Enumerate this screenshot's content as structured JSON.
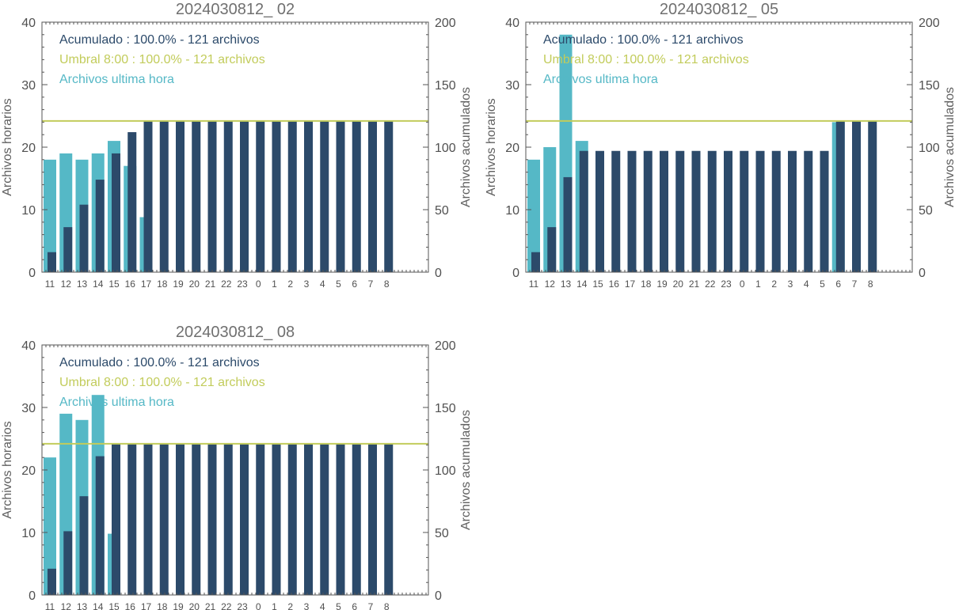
{
  "colors": {
    "hourly": "#55B8C6",
    "cumulative": "#2C4A6A",
    "threshold": "#C2CC5B",
    "axis": "#555555"
  },
  "chart_data": [
    {
      "type": "bar",
      "title": "2024030812_ 02",
      "ylabel": "Archivos horarios",
      "y2label": "Archivos acumulados",
      "ylim": [
        0,
        40
      ],
      "y2lim": [
        0,
        200
      ],
      "yticks": [
        "0",
        "10",
        "20",
        "30",
        "40"
      ],
      "y2ticks": [
        "0",
        "50",
        "100",
        "150",
        "200"
      ],
      "categories": [
        "11",
        "12",
        "13",
        "14",
        "15",
        "16",
        "17",
        "18",
        "19",
        "20",
        "21",
        "22",
        "23",
        "0",
        "1",
        "2",
        "3",
        "4",
        "5",
        "6",
        "7",
        "8"
      ],
      "legend": [
        "Acumulado : 100.0% - 121 archivos",
        "Umbral 8:00 : 100.0% - 121 archivos",
        "Archivos ultima hora"
      ],
      "threshold": 121,
      "series": [
        {
          "name": "Archivos ultima hora",
          "values": [
            18,
            19,
            18,
            19,
            21,
            17,
            8.8,
            0,
            0,
            0,
            0,
            0,
            0,
            0,
            0,
            0,
            0,
            0,
            0,
            0,
            0,
            0
          ]
        },
        {
          "name": "Acumulado",
          "values": [
            16,
            36,
            54,
            74,
            95,
            112,
            121,
            121,
            121,
            121,
            121,
            121,
            121,
            121,
            121,
            121,
            121,
            121,
            121,
            121,
            121,
            121
          ]
        }
      ]
    },
    {
      "type": "bar",
      "title": "2024030812_ 05",
      "ylabel": "Archivos horarios",
      "y2label": "Archivos acumulados",
      "ylim": [
        0,
        40
      ],
      "y2lim": [
        0,
        200
      ],
      "yticks": [
        "0",
        "10",
        "20",
        "30",
        "40"
      ],
      "y2ticks": [
        "0",
        "50",
        "100",
        "150",
        "200"
      ],
      "categories": [
        "11",
        "12",
        "13",
        "14",
        "15",
        "16",
        "17",
        "18",
        "19",
        "20",
        "21",
        "22",
        "23",
        "0",
        "1",
        "2",
        "3",
        "4",
        "5",
        "6",
        "7",
        "8"
      ],
      "legend": [
        "Acumulado : 100.0% - 121 archivos",
        "Umbral 8:00 : 100.0% - 121 archivos",
        "Archivos ultima hora"
      ],
      "threshold": 121,
      "series": [
        {
          "name": "Archivos ultima hora",
          "values": [
            18,
            20,
            38,
            21,
            0,
            0,
            0,
            0,
            0,
            0,
            0,
            0,
            0,
            0,
            0,
            0,
            0,
            0,
            0,
            24,
            0,
            0
          ]
        },
        {
          "name": "Acumulado",
          "values": [
            16,
            36,
            76,
            97,
            97,
            97,
            97,
            97,
            97,
            97,
            97,
            97,
            97,
            97,
            97,
            97,
            97,
            97,
            97,
            121,
            121,
            121
          ]
        }
      ]
    },
    {
      "type": "bar",
      "title": "2024030812_ 08",
      "ylabel": "Archivos horarios",
      "y2label": "Archivos acumulados",
      "ylim": [
        0,
        40
      ],
      "y2lim": [
        0,
        200
      ],
      "yticks": [
        "0",
        "10",
        "20",
        "30",
        "40"
      ],
      "y2ticks": [
        "0",
        "50",
        "100",
        "150",
        "200"
      ],
      "categories": [
        "11",
        "12",
        "13",
        "14",
        "15",
        "16",
        "17",
        "18",
        "19",
        "20",
        "21",
        "22",
        "23",
        "0",
        "1",
        "2",
        "3",
        "4",
        "5",
        "6",
        "7",
        "8"
      ],
      "legend": [
        "Acumulado : 100.0% - 121 archivos",
        "Umbral 8:00 : 100.0% - 121 archivos",
        "Archivos ultima hora"
      ],
      "threshold": 121,
      "series": [
        {
          "name": "Archivos ultima hora",
          "values": [
            22,
            29,
            28,
            32,
            9.8,
            0,
            0,
            0,
            0,
            0,
            0,
            0,
            0,
            0,
            0,
            0,
            0,
            0,
            0,
            0,
            0,
            0
          ]
        },
        {
          "name": "Acumulado",
          "values": [
            21,
            51,
            79,
            111,
            121,
            121,
            121,
            121,
            121,
            121,
            121,
            121,
            121,
            121,
            121,
            121,
            121,
            121,
            121,
            121,
            121,
            121
          ]
        }
      ]
    }
  ]
}
